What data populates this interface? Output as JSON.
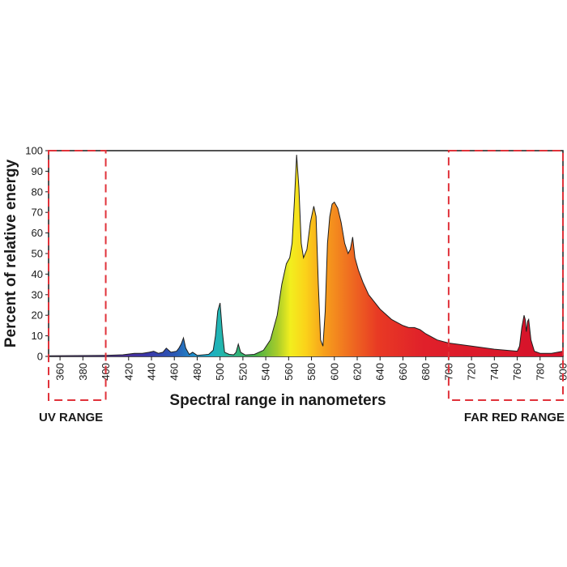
{
  "chart_data": {
    "type": "area",
    "title": "",
    "xlabel": "Spectral range in nanometers",
    "ylabel": "Percent of relative energy",
    "xlim": [
      350,
      800
    ],
    "ylim": [
      0,
      100
    ],
    "x_ticks": [
      360,
      380,
      400,
      420,
      440,
      460,
      480,
      500,
      520,
      540,
      560,
      580,
      600,
      620,
      640,
      660,
      680,
      700,
      720,
      740,
      760,
      780,
      800
    ],
    "y_ticks": [
      0,
      10,
      20,
      30,
      40,
      50,
      60,
      70,
      80,
      90,
      100
    ],
    "grid": false,
    "series": [
      {
        "name": "Relative energy",
        "x": [
          350,
          400,
          415,
          425,
          432,
          438,
          442,
          446,
          450,
          453,
          457,
          462,
          464,
          466,
          468,
          470,
          473,
          476,
          480,
          490,
          494,
          496,
          498,
          500,
          502,
          504,
          508,
          512,
          514,
          516,
          518,
          522,
          530,
          538,
          544,
          550,
          554,
          558,
          561,
          563,
          565,
          567,
          569,
          571,
          573,
          576,
          579,
          582,
          584,
          586,
          588,
          590,
          592,
          594,
          596,
          598,
          600,
          603,
          606,
          609,
          612,
          614,
          616,
          618,
          621,
          625,
          630,
          640,
          650,
          660,
          665,
          670,
          675,
          680,
          690,
          700,
          720,
          740,
          760,
          762,
          764,
          766,
          767,
          768,
          769,
          770,
          772,
          775,
          780,
          790,
          800
        ],
        "values": [
          0.3,
          0.5,
          0.8,
          1.5,
          1.5,
          2,
          2.5,
          1.5,
          2,
          4,
          2,
          2.5,
          4,
          6,
          9,
          4,
          1,
          2,
          0.5,
          1,
          3,
          10,
          22,
          26,
          12,
          2,
          1,
          0.8,
          2,
          6,
          2,
          0.7,
          1,
          3,
          8,
          20,
          35,
          45,
          48,
          55,
          75,
          98,
          82,
          55,
          48,
          52,
          65,
          73,
          68,
          35,
          8,
          5,
          22,
          55,
          68,
          74,
          75,
          72,
          65,
          55,
          50,
          52,
          58,
          48,
          42,
          36,
          30,
          23,
          18,
          15,
          14,
          14,
          13,
          11,
          8,
          6.5,
          5,
          3.5,
          2.5,
          5,
          14,
          20,
          18,
          12,
          17,
          18,
          8,
          2.5,
          1.5,
          1.5,
          2.5
        ]
      }
    ],
    "annotations": [
      {
        "text": "UV RANGE",
        "x_range": [
          350,
          400
        ]
      },
      {
        "text": "FAR RED RANGE",
        "x_range": [
          700,
          800
        ]
      }
    ],
    "colors": {
      "outline": "#1e1e1e",
      "range_box": "#e0323a",
      "axis": "#1a1a1a"
    }
  }
}
